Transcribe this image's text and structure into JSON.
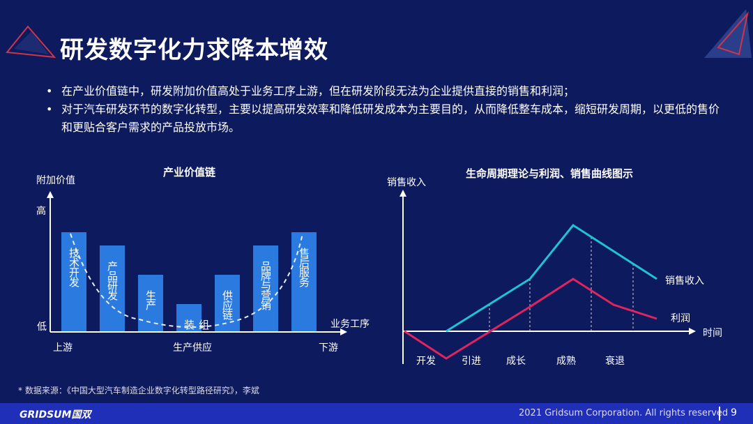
{
  "title": "研发数字化力求降本增效",
  "bullets": [
    "在产业价值链中，研发附加价值高处于业务工序上游，但在研发阶段无法为企业提供直接的销售和利润；",
    "对于汽车研发环节的数字化转型，主要以提高研发效率和降低研发成本为主要目的，从而降低整车成本，缩短研发周期，以更低的售价和更贴合客户需求的产品投放市场。"
  ],
  "left_chart": {
    "title": "产业价值链",
    "ylabel": "附加价值",
    "y_high": "高",
    "y_low": "低",
    "xlabel": "业务工序",
    "x_left": "上游",
    "x_mid": "生产供应",
    "x_right": "下游",
    "bars": [
      "技术开发",
      "产品研发",
      "生产",
      "组装",
      "供应链",
      "品牌与营销",
      "售后服务"
    ],
    "bar_color": "#2a7ae0"
  },
  "right_chart": {
    "title": "生命周期理论与利润、销售曲线图示",
    "ylabel": "销售收入",
    "xlabel": "时间",
    "stages": [
      "开发",
      "引进",
      "成长",
      "成熟",
      "衰退"
    ],
    "series": [
      {
        "name": "销售收入",
        "color": "#1fc4d4"
      },
      {
        "name": "利润",
        "color": "#e0245e"
      }
    ]
  },
  "note": "* 数据来源：《中国大型汽车制造企业数字化转型路径研究》，李斌",
  "footer": {
    "logo": "GRIDSUM国双",
    "copyright": "2021 Gridsum Corporation. All rights reserved",
    "page": "9"
  }
}
